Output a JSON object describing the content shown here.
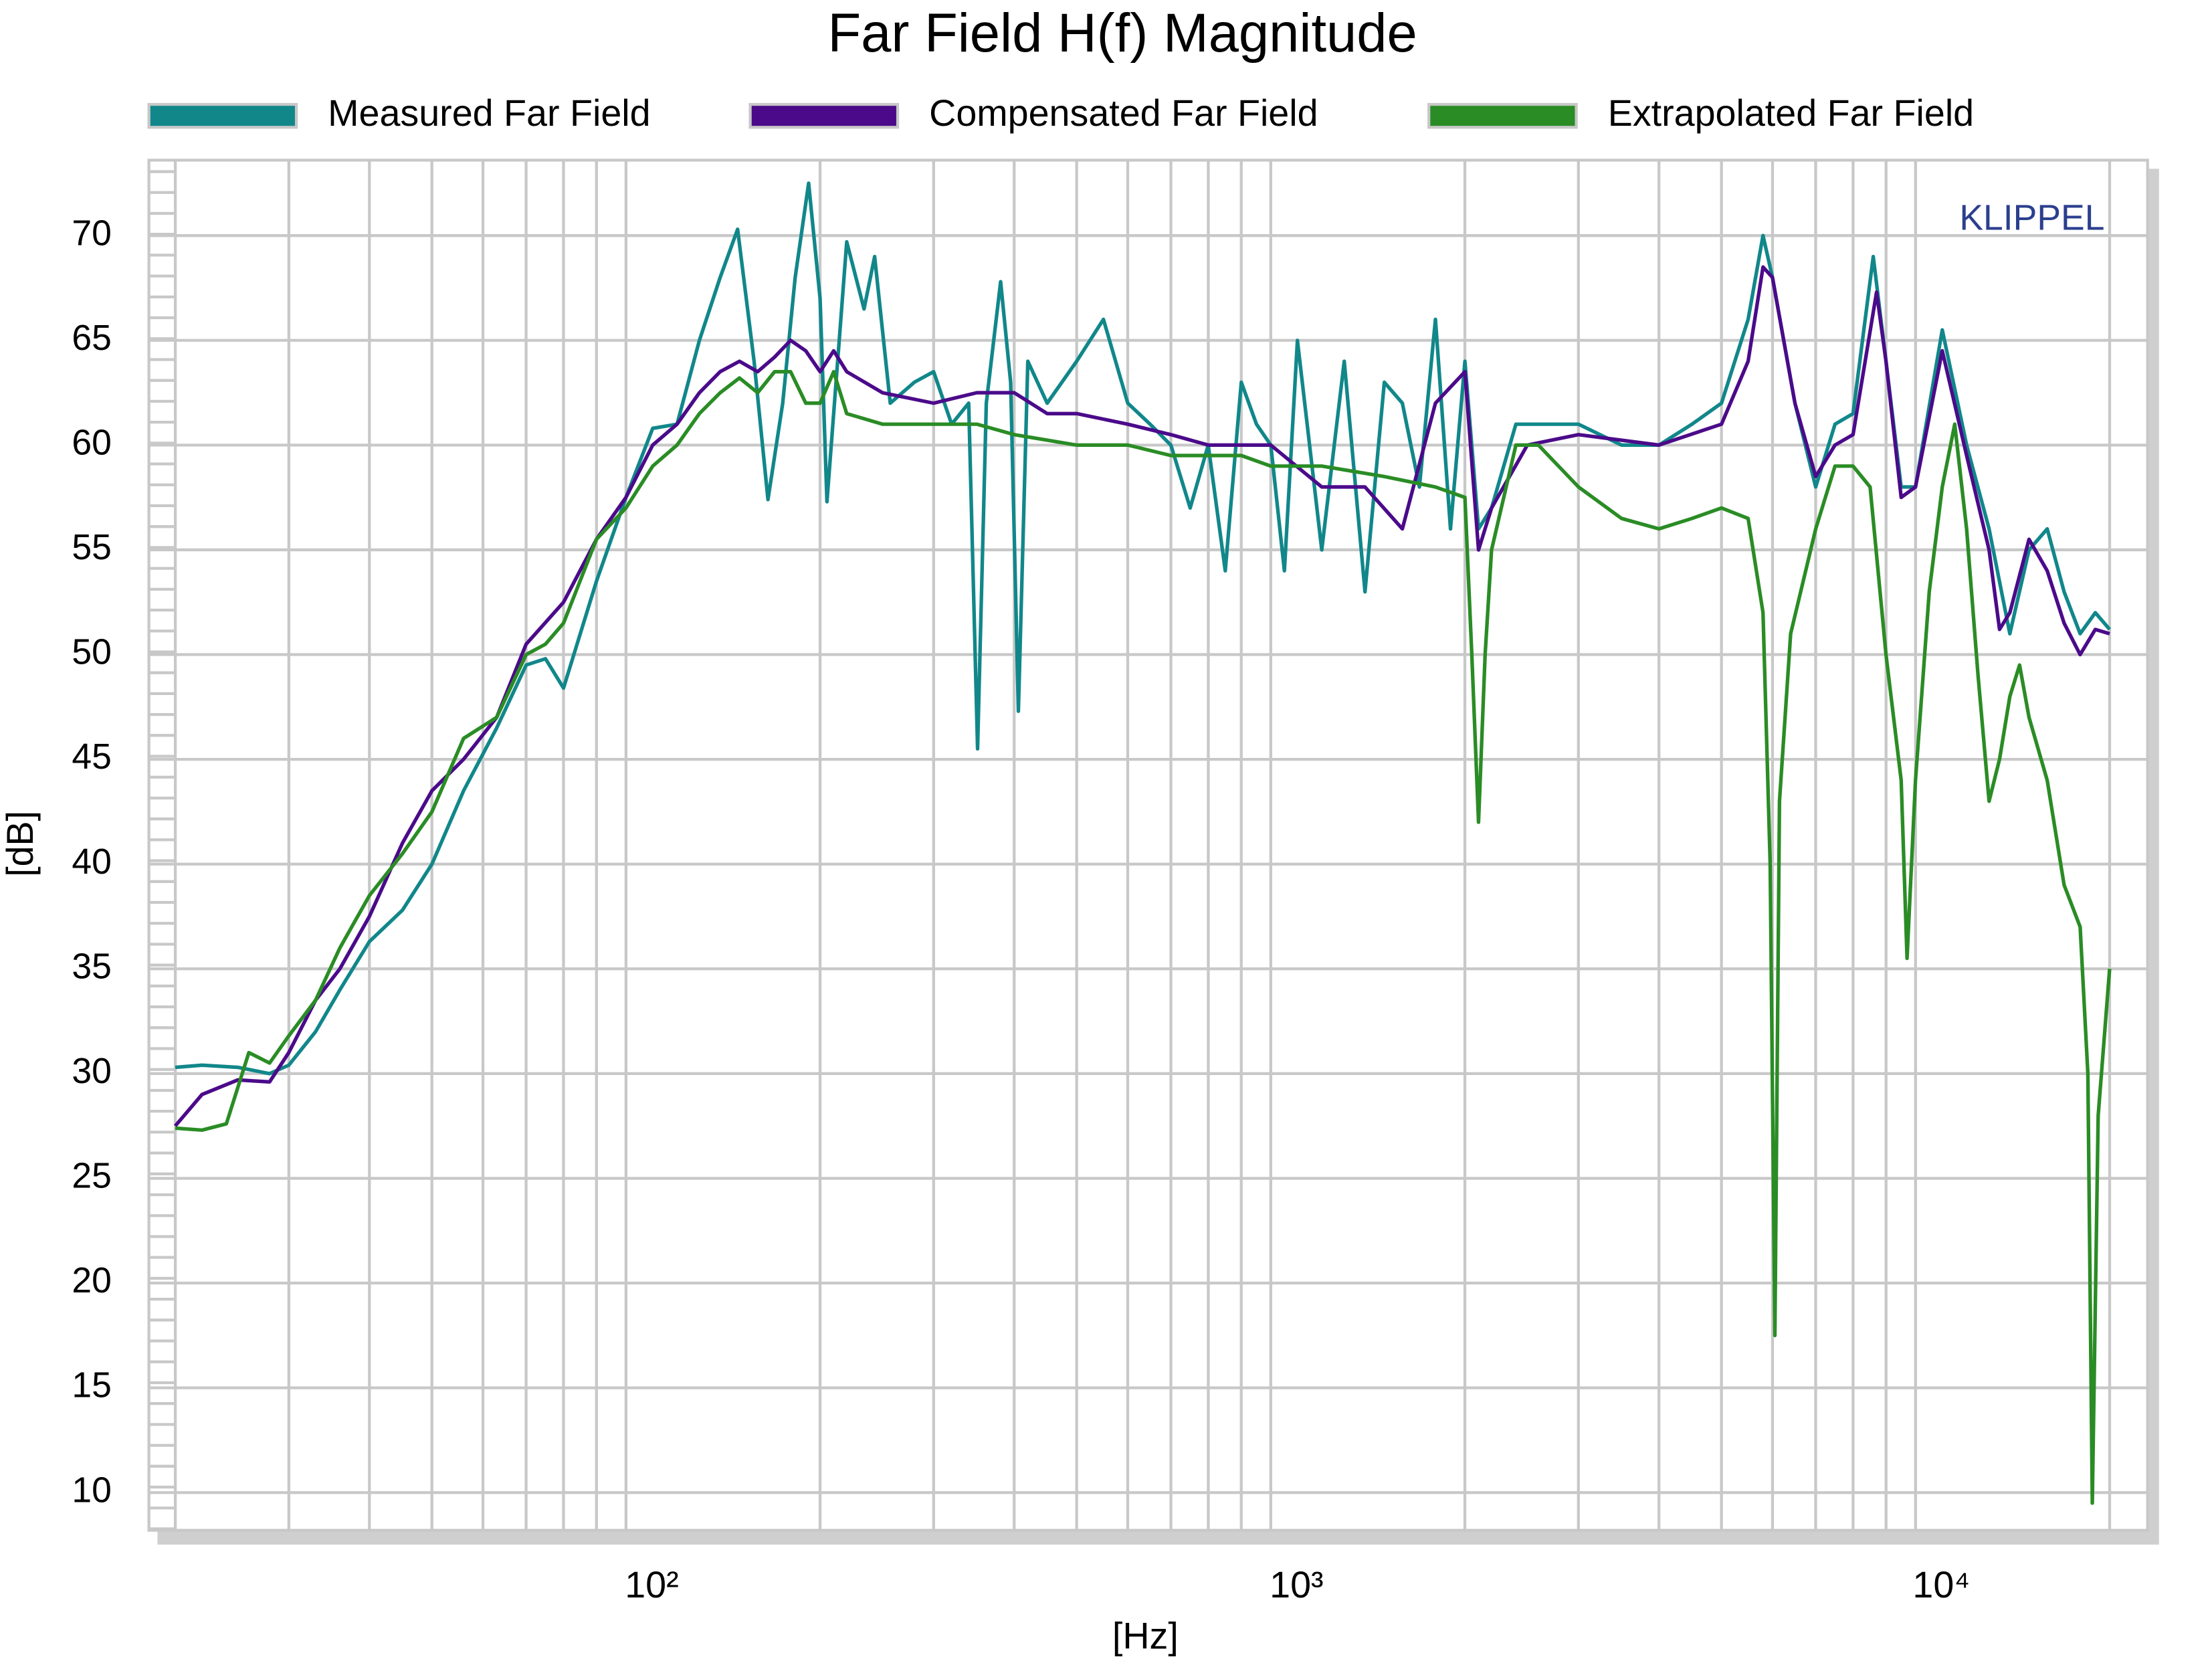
{
  "chart_data": {
    "type": "line",
    "title": "Far Field H(f) Magnitude",
    "xlabel": "[Hz]",
    "ylabel": "[dB]",
    "annotation": "KLIPPEL",
    "xscale": "log",
    "xlim": [
      18.2,
      22900
    ],
    "ylim": [
      8.2,
      73.6
    ],
    "xticks": [
      {
        "value": 100,
        "label": "10²"
      },
      {
        "value": 1000,
        "label": "10³"
      },
      {
        "value": 10000,
        "label": "10⁴"
      }
    ],
    "xminor": [
      20,
      30,
      40,
      50,
      60,
      70,
      80,
      90,
      200,
      300,
      400,
      500,
      600,
      700,
      800,
      900,
      2000,
      3000,
      4000,
      5000,
      6000,
      7000,
      8000,
      9000,
      20000
    ],
    "yticks": [
      10,
      15,
      20,
      25,
      30,
      35,
      40,
      45,
      50,
      55,
      60,
      65,
      70
    ],
    "grid": true,
    "legend": "top",
    "series": [
      {
        "name": "Measured Far Field",
        "color": "#11878a",
        "x": [
          20,
          22,
          25,
          28,
          30,
          33,
          36,
          40,
          45,
          50,
          56,
          63,
          70,
          75,
          80,
          90,
          100,
          110,
          120,
          130,
          140,
          149,
          158,
          166,
          175,
          183,
          192,
          200,
          205,
          220,
          234,
          243,
          257,
          280,
          300,
          320,
          340,
          351,
          362,
          381,
          395,
          406,
          420,
          450,
          500,
          550,
          600,
          650,
          700,
          750,
          800,
          850,
          900,
          950,
          1000,
          1050,
          1100,
          1200,
          1300,
          1400,
          1500,
          1600,
          1700,
          1800,
          1900,
          2000,
          2100,
          2200,
          2400,
          2700,
          3000,
          3500,
          4000,
          4500,
          5000,
          5500,
          5800,
          6000,
          6500,
          7000,
          7500,
          8000,
          8600,
          9000,
          9500,
          10000,
          11000,
          12000,
          13000,
          14000,
          15000,
          16000,
          17000,
          18000,
          19000,
          20000
        ],
        "values": [
          30.3,
          30.4,
          30.3,
          30.0,
          30.4,
          32,
          34,
          36.3,
          37.8,
          40,
          43.5,
          46.5,
          49.5,
          49.8,
          48.4,
          53.5,
          57.5,
          60.8,
          61,
          65,
          68,
          70.3,
          64,
          57.4,
          62,
          68,
          72.5,
          67,
          57.3,
          69.7,
          66.5,
          69,
          62,
          63,
          63.5,
          61,
          62,
          45.5,
          62,
          67.8,
          63,
          47.3,
          64,
          62,
          64,
          66,
          62,
          61,
          60,
          57,
          60,
          54,
          63,
          61,
          60,
          54,
          65,
          55,
          64,
          53,
          63,
          62,
          58,
          66,
          56,
          64,
          56,
          57,
          61,
          61,
          61,
          60,
          60,
          61,
          62,
          66,
          70,
          68,
          62,
          58,
          61,
          61.5,
          69,
          64,
          58,
          58,
          65.5,
          60,
          56,
          51,
          55,
          56,
          53,
          51,
          52,
          51.2
        ]
      },
      {
        "name": "Compensated Far Field",
        "color": "#4b0a8a",
        "x": [
          20,
          22,
          25,
          28,
          30,
          33,
          36,
          40,
          45,
          50,
          56,
          63,
          70,
          80,
          90,
          100,
          110,
          120,
          130,
          140,
          150,
          160,
          170,
          180,
          190,
          200,
          210,
          220,
          250,
          300,
          350,
          400,
          450,
          500,
          600,
          700,
          800,
          900,
          1000,
          1200,
          1400,
          1600,
          1800,
          2000,
          2100,
          2200,
          2500,
          3000,
          4000,
          5000,
          5500,
          5800,
          6000,
          6500,
          7000,
          7500,
          8000,
          8700,
          9000,
          9500,
          10000,
          11000,
          12000,
          13000,
          13500,
          14000,
          15000,
          16000,
          17000,
          18000,
          19000,
          20000
        ],
        "values": [
          27.5,
          29,
          29.7,
          29.6,
          31,
          33.5,
          35,
          37.5,
          41,
          43.5,
          45,
          47,
          50.5,
          52.5,
          55.5,
          57.5,
          60,
          61,
          62.5,
          63.5,
          64,
          63.5,
          64.2,
          65,
          64.5,
          63.5,
          64.5,
          63.5,
          62.5,
          62,
          62.5,
          62.5,
          61.5,
          61.5,
          61,
          60.5,
          60,
          60,
          60,
          58,
          58,
          56,
          62,
          63.5,
          55,
          57,
          60,
          60.5,
          60,
          61,
          64,
          68.5,
          68,
          62,
          58.5,
          60,
          60.5,
          67.3,
          64,
          57.5,
          58,
          64.5,
          59.5,
          55,
          51.2,
          52,
          55.5,
          54,
          51.5,
          50,
          51.2,
          51
        ]
      },
      {
        "name": "Extrapolated Far Field",
        "color": "#2a8c25",
        "x": [
          20,
          22,
          24,
          26,
          28,
          30,
          33,
          36,
          40,
          45,
          50,
          56,
          63,
          70,
          75,
          80,
          90,
          100,
          110,
          120,
          130,
          140,
          150,
          160,
          170,
          180,
          190,
          200,
          210,
          220,
          250,
          300,
          350,
          400,
          500,
          600,
          700,
          800,
          900,
          1000,
          1200,
          1500,
          1800,
          2000,
          2050,
          2100,
          2150,
          2200,
          2400,
          2600,
          3000,
          3500,
          4000,
          4500,
          5000,
          5500,
          5800,
          5950,
          6050,
          6150,
          6400,
          7000,
          7500,
          8000,
          8500,
          9000,
          9500,
          9700,
          10000,
          10500,
          11000,
          11500,
          12000,
          12500,
          13000,
          13500,
          14000,
          14500,
          15000,
          16000,
          17000,
          18000,
          18500,
          18800,
          19200,
          20000
        ],
        "values": [
          27.4,
          27.3,
          27.6,
          31,
          30.5,
          31.8,
          33.5,
          36,
          38.5,
          40.5,
          42.5,
          46,
          47,
          50,
          50.5,
          51.5,
          55.5,
          57,
          59,
          60,
          61.5,
          62.5,
          63.2,
          62.5,
          63.5,
          63.5,
          62,
          62,
          63.5,
          61.5,
          61,
          61,
          61,
          60.5,
          60,
          60,
          59.5,
          59.5,
          59.5,
          59,
          59,
          58.5,
          58,
          57.5,
          50,
          42,
          50,
          55,
          60,
          60,
          58,
          56.5,
          56,
          56.5,
          57,
          56.5,
          52,
          40,
          17.5,
          43,
          51,
          56,
          59,
          59,
          58,
          50,
          44,
          35.5,
          44,
          53,
          58,
          61,
          56,
          49,
          43,
          45,
          48,
          49.5,
          47,
          44,
          39,
          37,
          30,
          9.5,
          28,
          35
        ]
      }
    ]
  }
}
